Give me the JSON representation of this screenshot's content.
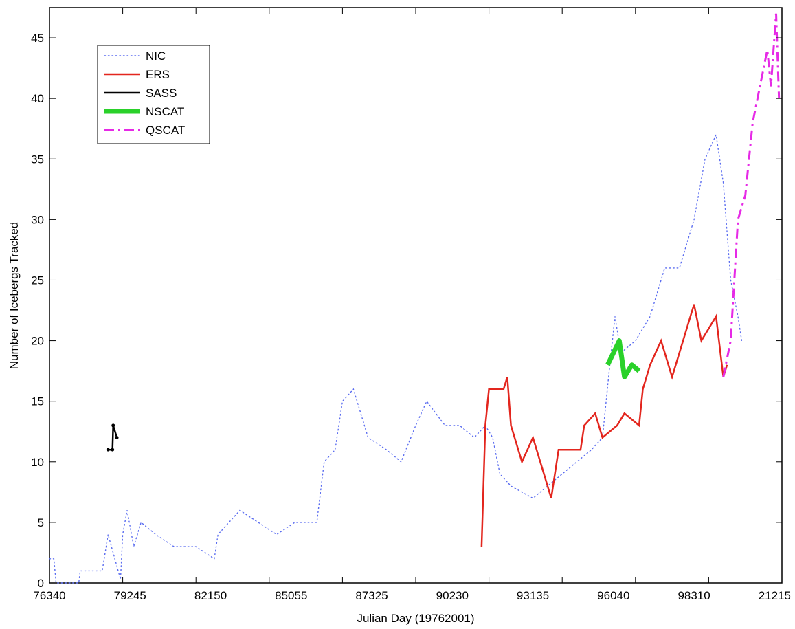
{
  "chart_data": {
    "type": "line",
    "title": "",
    "xlabel": "Julian Day (19762001)",
    "ylabel": "Number of Icebergs Tracked",
    "xlim": [
      0,
      10
    ],
    "ylim": [
      0,
      47.5
    ],
    "x_tick_labels": [
      "76340",
      "79245",
      "82150",
      "85055",
      "87325",
      "90230",
      "93135",
      "96040",
      "98310",
      "21215"
    ],
    "x_ticks": [
      0,
      1,
      2,
      3,
      4,
      5,
      6,
      7,
      8,
      9,
      10
    ],
    "x_tick_positions": [
      0,
      1.1,
      2.2,
      3.3,
      4.4,
      5.5,
      6.6,
      7.7,
      8.8,
      9.9
    ],
    "y_ticks": [
      0,
      5,
      10,
      15,
      20,
      25,
      30,
      35,
      40,
      45
    ],
    "grid": false,
    "legend_position": "top-left",
    "series": [
      {
        "name": "NIC",
        "color": "#5a6cf0",
        "style": "dotted",
        "points": [
          [
            0.0,
            2
          ],
          [
            0.06,
            2
          ],
          [
            0.09,
            0
          ],
          [
            0.4,
            0
          ],
          [
            0.42,
            1
          ],
          [
            0.72,
            1
          ],
          [
            0.8,
            4
          ],
          [
            0.97,
            0.3
          ],
          [
            1.0,
            4
          ],
          [
            1.06,
            6
          ],
          [
            1.15,
            3
          ],
          [
            1.25,
            5
          ],
          [
            1.45,
            4
          ],
          [
            1.7,
            3
          ],
          [
            2.0,
            3
          ],
          [
            2.25,
            2
          ],
          [
            2.3,
            4
          ],
          [
            2.6,
            6
          ],
          [
            2.85,
            5
          ],
          [
            3.1,
            4
          ],
          [
            3.35,
            5
          ],
          [
            3.65,
            5
          ],
          [
            3.75,
            10
          ],
          [
            3.9,
            11
          ],
          [
            4.0,
            15
          ],
          [
            4.15,
            16
          ],
          [
            4.35,
            12
          ],
          [
            4.6,
            11
          ],
          [
            4.8,
            10
          ],
          [
            5.0,
            13
          ],
          [
            5.15,
            15
          ],
          [
            5.4,
            13
          ],
          [
            5.6,
            13
          ],
          [
            5.8,
            12
          ],
          [
            5.95,
            13
          ],
          [
            6.05,
            12
          ],
          [
            6.15,
            9
          ],
          [
            6.3,
            8
          ],
          [
            6.6,
            7
          ],
          [
            6.8,
            8
          ],
          [
            7.0,
            9
          ],
          [
            7.2,
            10
          ],
          [
            7.4,
            11
          ],
          [
            7.55,
            12
          ],
          [
            7.65,
            18
          ],
          [
            7.72,
            22
          ],
          [
            7.8,
            19
          ],
          [
            8.0,
            20
          ],
          [
            8.2,
            22
          ],
          [
            8.4,
            26
          ],
          [
            8.6,
            26
          ],
          [
            8.8,
            30
          ],
          [
            8.95,
            35
          ],
          [
            9.1,
            37
          ],
          [
            9.2,
            33
          ],
          [
            9.3,
            25
          ],
          [
            9.4,
            22
          ],
          [
            9.45,
            20
          ]
        ]
      },
      {
        "name": "ERS",
        "color": "#e3261e",
        "style": "solid",
        "points": [
          [
            5.9,
            3
          ],
          [
            5.95,
            13
          ],
          [
            6.0,
            16
          ],
          [
            6.2,
            16
          ],
          [
            6.25,
            17
          ],
          [
            6.3,
            13
          ],
          [
            6.45,
            10
          ],
          [
            6.6,
            12
          ],
          [
            6.75,
            9
          ],
          [
            6.85,
            7
          ],
          [
            6.95,
            11
          ],
          [
            7.25,
            11
          ],
          [
            7.3,
            13
          ],
          [
            7.45,
            14
          ],
          [
            7.55,
            12
          ],
          [
            7.75,
            13
          ],
          [
            7.85,
            14
          ],
          [
            8.05,
            13
          ],
          [
            8.1,
            16
          ],
          [
            8.2,
            18
          ],
          [
            8.35,
            20
          ],
          [
            8.5,
            17
          ],
          [
            8.65,
            20
          ],
          [
            8.8,
            23
          ],
          [
            8.9,
            20
          ],
          [
            9.1,
            22
          ],
          [
            9.2,
            17
          ],
          [
            9.25,
            18
          ]
        ]
      },
      {
        "name": "SASS",
        "color": "#000000",
        "style": "solid-marker",
        "points": [
          [
            0.8,
            11
          ],
          [
            0.86,
            11
          ],
          [
            0.87,
            13
          ],
          [
            0.92,
            12
          ]
        ]
      },
      {
        "name": "NSCAT",
        "color": "#2ad12a",
        "style": "thick",
        "points": [
          [
            7.62,
            18
          ],
          [
            7.7,
            19
          ],
          [
            7.78,
            20
          ],
          [
            7.85,
            17
          ],
          [
            7.95,
            18
          ],
          [
            8.05,
            17.5
          ]
        ]
      },
      {
        "name": "QSCAT",
        "color": "#e62ae6",
        "style": "dashdot",
        "points": [
          [
            9.2,
            17
          ],
          [
            9.3,
            20
          ],
          [
            9.4,
            30
          ],
          [
            9.5,
            32
          ],
          [
            9.6,
            38
          ],
          [
            9.7,
            41
          ],
          [
            9.8,
            44
          ],
          [
            9.85,
            41
          ],
          [
            9.92,
            47
          ],
          [
            9.96,
            40
          ]
        ]
      }
    ]
  }
}
